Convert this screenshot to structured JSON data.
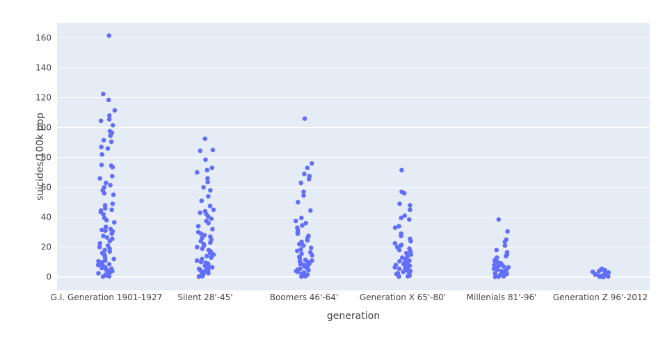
{
  "colors": {
    "plot_bg": "#E5ECF6",
    "grid": "#FFFFFF",
    "marker": "#636EFA",
    "text": "#444444"
  },
  "chart_data": {
    "type": "scatter",
    "mode": "strip",
    "xlabel": "generation",
    "ylabel": "suicides/100k pop",
    "categories": [
      "G.I. Generation 1901-1927",
      "Silent 28'-45'",
      "Boomers 46'-64'",
      "Generation X 65'-80'",
      "Millenials 81'-96'",
      "Generation Z 96'-2012"
    ],
    "ylim": [
      -9,
      170
    ],
    "yticks": [
      0,
      20,
      40,
      60,
      80,
      100,
      120,
      140,
      160
    ],
    "grid": true,
    "series": [
      {
        "category": "G.I. Generation 1901-1927",
        "values": [
          161.5,
          122.5,
          118.5,
          111.5,
          108,
          105.5,
          104.5,
          101.5,
          97.5,
          96.5,
          94.5,
          91.5,
          90.5,
          87,
          86,
          82,
          75,
          74.5,
          73.5,
          67.5,
          66,
          63,
          61.5,
          60,
          58,
          56,
          55,
          49,
          48,
          46,
          45,
          44.5,
          43.5,
          42,
          39.5,
          38,
          36.5,
          33.5,
          32,
          31.5,
          31,
          30.5,
          29,
          27.5,
          26.5,
          25.5,
          24,
          22.5,
          21,
          20,
          19,
          18,
          17,
          16,
          15,
          14,
          13,
          12,
          11,
          10.5,
          10,
          9,
          8.5,
          8,
          7.5,
          7,
          6.5,
          6,
          5.5,
          5,
          4.5,
          4,
          3.5,
          3,
          2.5,
          2,
          1.5,
          1,
          0.5,
          0.3
        ]
      },
      {
        "category": "Silent 28'-45'",
        "values": [
          92.5,
          85,
          84.5,
          78.5,
          73,
          71.5,
          70,
          66,
          63.5,
          60,
          58,
          54,
          51,
          47.5,
          45,
          44,
          43,
          42,
          40.5,
          39,
          37.5,
          36,
          34,
          32,
          30,
          29,
          28,
          27,
          26,
          25,
          24,
          23,
          22,
          21,
          20,
          19,
          18,
          17,
          16,
          15,
          14,
          13,
          12,
          11,
          10,
          9.5,
          9,
          8.5,
          8,
          7.5,
          7,
          6.5,
          6,
          5.5,
          5,
          4.5,
          4,
          3.5,
          3,
          2.5,
          2,
          1.5,
          1,
          0.5,
          0.3
        ]
      },
      {
        "category": "Boomers 46'-64'",
        "values": [
          106,
          76,
          73,
          69,
          67.5,
          65.5,
          63,
          57,
          54.5,
          50,
          44.5,
          39.5,
          37.5,
          36,
          34.5,
          33,
          31.5,
          30,
          29,
          27.5,
          26,
          24.5,
          23.5,
          22,
          21,
          19.5,
          18.5,
          17.5,
          16.5,
          15.5,
          14.5,
          13.5,
          12.5,
          11.5,
          11,
          10.5,
          10,
          9.5,
          9,
          8.5,
          8,
          7.5,
          7,
          6.5,
          6,
          5.5,
          5,
          4.5,
          4,
          3.5,
          3,
          2.5,
          2,
          1.5,
          1,
          0.5,
          0.3
        ]
      },
      {
        "category": "Generation X 65'-80'",
        "values": [
          71.5,
          57,
          56,
          49,
          48,
          45,
          41,
          39.5,
          38.5,
          34,
          33,
          29,
          27.5,
          25.5,
          24,
          22.5,
          21.5,
          21,
          20,
          19,
          18,
          17,
          16,
          15,
          14,
          13,
          12,
          11,
          10.5,
          10,
          9.5,
          9,
          8.5,
          8,
          7.5,
          7,
          6.5,
          6,
          5.5,
          5,
          4.5,
          4,
          3.5,
          3,
          2.5,
          2,
          1.5,
          1,
          0.5,
          0.3
        ]
      },
      {
        "category": "Millenials 81'-96'",
        "values": [
          38.5,
          30.5,
          25,
          23.5,
          21,
          18,
          16.5,
          15,
          14,
          13,
          12,
          11,
          10,
          9.5,
          9,
          8.5,
          8,
          7.5,
          7,
          6.5,
          6,
          5.5,
          5,
          4.5,
          4,
          3.5,
          3,
          2.5,
          2,
          1.5,
          1,
          0.5,
          0.3,
          0.1
        ]
      },
      {
        "category": "Generation Z 96'-2012",
        "values": [
          5.5,
          5,
          4.5,
          4,
          3.5,
          3,
          2.5,
          2,
          1.8,
          1.5,
          1.2,
          1,
          0.8,
          0.6,
          0.4,
          0.2,
          0.1,
          0
        ]
      }
    ]
  }
}
